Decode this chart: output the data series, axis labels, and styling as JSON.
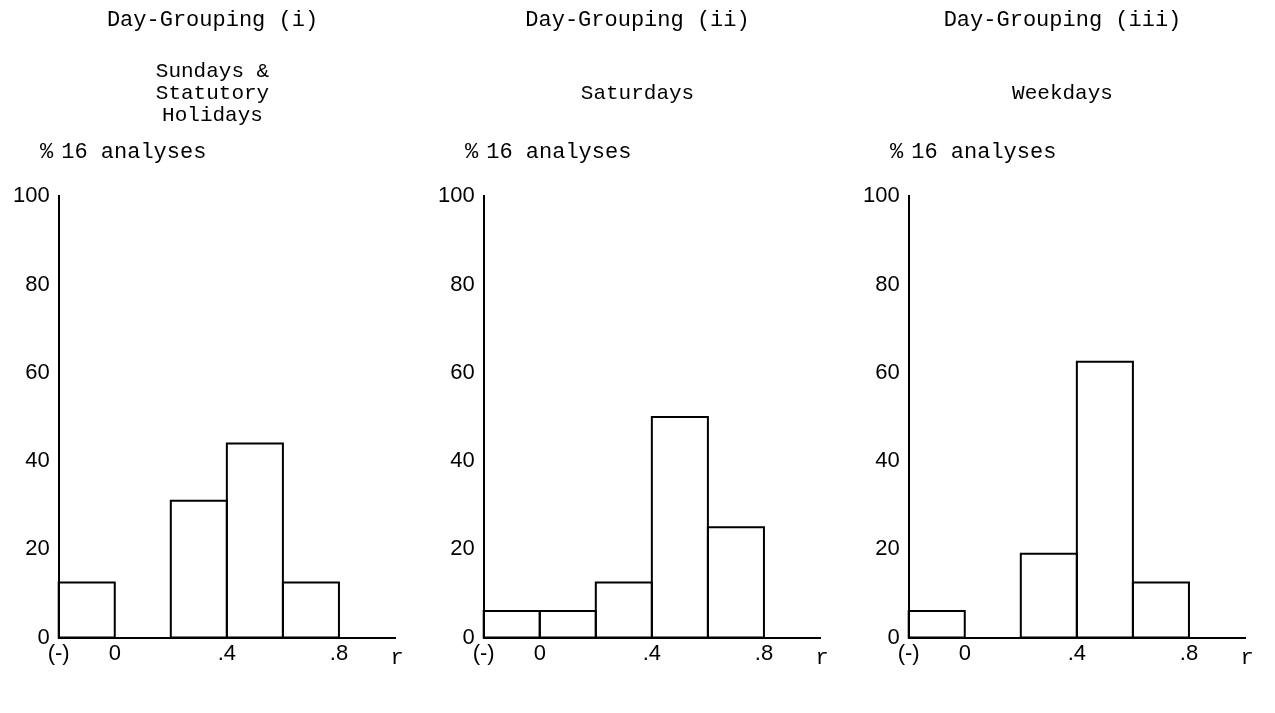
{
  "chart_data": [
    {
      "type": "histogram",
      "title": "Day-Grouping (i)",
      "subtitle": "Sundays & Statutory Holidays",
      "ylabel": "%",
      "xlabel": "r",
      "annotations": [
        "16 analyses"
      ],
      "bins": [
        -0.2,
        0,
        0.2,
        0.4,
        0.6,
        0.8
      ],
      "values": [
        12.5,
        0,
        31,
        44,
        12.5
      ],
      "color": "#000000",
      "ylim": [
        0,
        100
      ],
      "yticks": [
        0,
        20,
        40,
        60,
        80,
        100
      ],
      "xlim": [
        -0.2,
        1.0
      ],
      "xticks": [
        {
          "value": -0.2,
          "label": "(-)"
        },
        {
          "value": 0,
          "label": "0"
        },
        {
          "value": 0.4,
          "label": ".4"
        },
        {
          "value": 0.8,
          "label": ".8"
        }
      ]
    },
    {
      "type": "histogram",
      "title": "Day-Grouping (ii)",
      "subtitle": "Saturdays",
      "ylabel": "%",
      "xlabel": "r",
      "annotations": [
        "16 analyses"
      ],
      "bins": [
        -0.2,
        0,
        0.2,
        0.4,
        0.6,
        0.8
      ],
      "values": [
        6,
        6,
        12.5,
        50,
        25
      ],
      "color": "#000000",
      "ylim": [
        0,
        100
      ],
      "yticks": [
        0,
        20,
        40,
        60,
        80,
        100
      ],
      "xlim": [
        -0.2,
        1.0
      ],
      "xticks": [
        {
          "value": -0.2,
          "label": "(-)"
        },
        {
          "value": 0,
          "label": "0"
        },
        {
          "value": 0.4,
          "label": ".4"
        },
        {
          "value": 0.8,
          "label": ".8"
        }
      ]
    },
    {
      "type": "histogram",
      "title": "Day-Grouping (iii)",
      "subtitle": "Weekdays",
      "ylabel": "%",
      "xlabel": "r",
      "annotations": [
        "16 analyses"
      ],
      "bins": [
        -0.2,
        0,
        0.2,
        0.4,
        0.6,
        0.8
      ],
      "values": [
        6,
        0,
        19,
        62.5,
        12.5
      ],
      "color": "#000000",
      "ylim": [
        0,
        100
      ],
      "yticks": [
        0,
        20,
        40,
        60,
        80,
        100
      ],
      "xlim": [
        -0.2,
        1.0
      ],
      "xticks": [
        {
          "value": -0.2,
          "label": "(-)"
        },
        {
          "value": 0,
          "label": "0"
        },
        {
          "value": 0.4,
          "label": ".4"
        },
        {
          "value": 0.8,
          "label": ".8"
        }
      ]
    }
  ]
}
